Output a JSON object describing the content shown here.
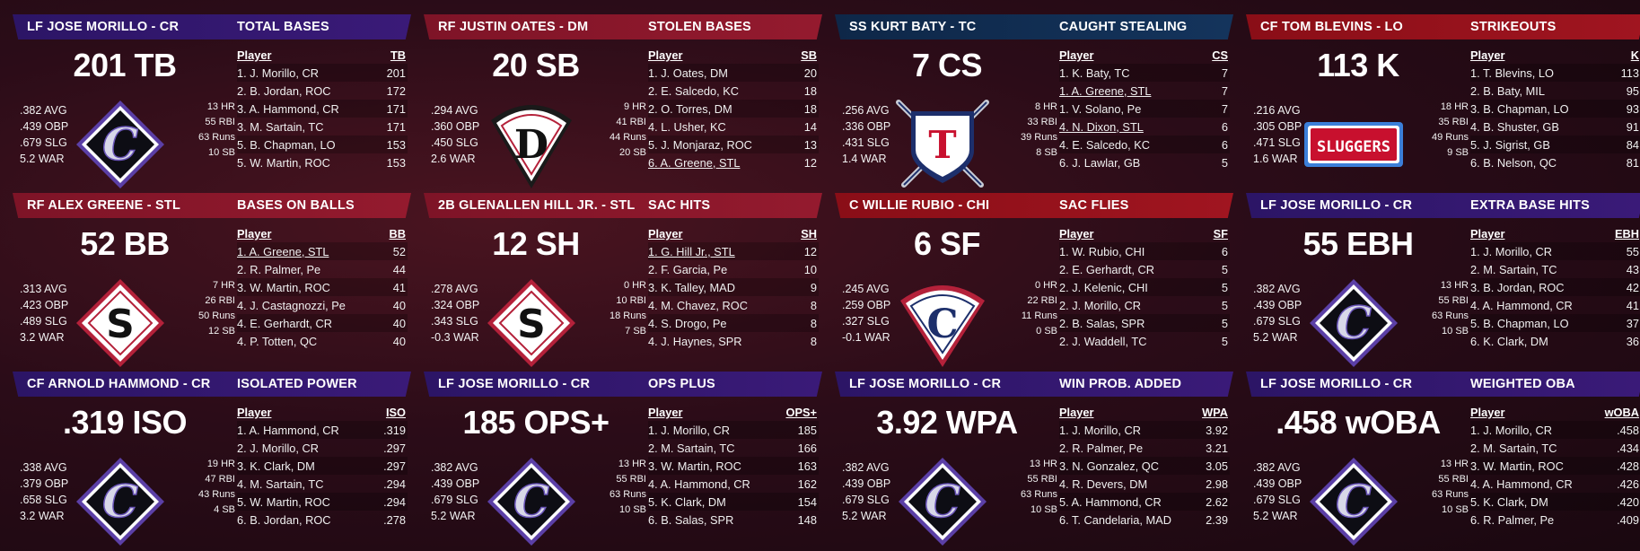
{
  "cards": [
    {
      "header_color": "purple",
      "player": "LF JOSE MORILLO - CR",
      "category": "TOTAL BASES",
      "big": "201 TB",
      "left": [
        ".382 AVG",
        ".439 OBP",
        ".679 SLG",
        "5.2 WAR"
      ],
      "right": [
        "13 HR",
        "55 RBI",
        "63 Runs",
        "10 SB"
      ],
      "logo": "cr",
      "col_player": "Player",
      "col_stat": "TB",
      "rows": [
        {
          "p": "1. J. Morillo, CR",
          "v": "201"
        },
        {
          "p": "2. B. Jordan, ROC",
          "v": "172"
        },
        {
          "p": "3. A. Hammond, CR",
          "v": "171"
        },
        {
          "p": "3. M. Sartain, TC",
          "v": "171"
        },
        {
          "p": "5. B. Chapman, LO",
          "v": "153"
        },
        {
          "p": "5. W. Martin, ROC",
          "v": "153"
        }
      ]
    },
    {
      "header_color": "red",
      "player": "RF JUSTIN OATES - DM",
      "category": "STOLEN BASES",
      "big": "20 SB",
      "left": [
        ".294 AVG",
        ".360 OBP",
        ".450 SLG",
        "2.6 WAR"
      ],
      "right": [
        "9 HR",
        "41 RBI",
        "44 Runs",
        "20 SB"
      ],
      "logo": "dm",
      "col_player": "Player",
      "col_stat": "SB",
      "rows": [
        {
          "p": "1. J. Oates, DM",
          "v": "20"
        },
        {
          "p": "2. E. Salcedo, KC",
          "v": "18"
        },
        {
          "p": "2. O. Torres, DM",
          "v": "18"
        },
        {
          "p": "4. L. Usher, KC",
          "v": "14"
        },
        {
          "p": "5. J. Monjaraz, ROC",
          "v": "13"
        },
        {
          "p": "6. A. Greene, STL",
          "v": "12",
          "hl": true
        }
      ]
    },
    {
      "header_color": "navy",
      "player": "SS KURT BATY - TC",
      "category": "CAUGHT STEALING",
      "big": "7 CS",
      "left": [
        ".256 AVG",
        ".336 OBP",
        ".431 SLG",
        "1.4 WAR"
      ],
      "right": [
        "8 HR",
        "33 RBI",
        "39 Runs",
        "8 SB"
      ],
      "logo": "tc",
      "col_player": "Player",
      "col_stat": "CS",
      "rows": [
        {
          "p": "1. K. Baty, TC",
          "v": "7"
        },
        {
          "p": "1. A. Greene, STL",
          "v": "7",
          "hl": true
        },
        {
          "p": "1. V. Solano, Pe",
          "v": "7"
        },
        {
          "p": "4. N. Dixon, STL",
          "v": "6",
          "hl": true
        },
        {
          "p": "4. E. Salcedo, KC",
          "v": "6"
        },
        {
          "p": "6. J. Lawlar, GB",
          "v": "5"
        }
      ]
    },
    {
      "header_color": "crimson",
      "player": "CF TOM BLEVINS - LO",
      "category": "STRIKEOUTS",
      "big": "113 K",
      "left": [
        ".216 AVG",
        ".305 OBP",
        ".471 SLG",
        "1.6 WAR"
      ],
      "right": [
        "18 HR",
        "35 RBI",
        "49 Runs",
        "9 SB"
      ],
      "logo": "lo",
      "logo_text": "SLUGGERS",
      "col_player": "Player",
      "col_stat": "K",
      "rows": [
        {
          "p": "1. T. Blevins, LO",
          "v": "113"
        },
        {
          "p": "2. B. Baty, MIL",
          "v": "95"
        },
        {
          "p": "3. B. Chapman, LO",
          "v": "93"
        },
        {
          "p": "4. B. Shuster, GB",
          "v": "91"
        },
        {
          "p": "5. J. Sigrist, GB",
          "v": "84"
        },
        {
          "p": "6. B. Nelson, QC",
          "v": "81"
        }
      ]
    },
    {
      "header_color": "red",
      "player": "RF ALEX GREENE - STL",
      "category": "BASES ON BALLS",
      "big": "52 BB",
      "left": [
        ".313 AVG",
        ".423 OBP",
        ".489 SLG",
        "3.2 WAR"
      ],
      "right": [
        "7 HR",
        "26 RBI",
        "50 Runs",
        "12 SB"
      ],
      "logo": "stl",
      "col_player": "Player",
      "col_stat": "BB",
      "rows": [
        {
          "p": "1. A. Greene, STL",
          "v": "52",
          "hl": true
        },
        {
          "p": "2. R. Palmer, Pe",
          "v": "44"
        },
        {
          "p": "3. W. Martin, ROC",
          "v": "41"
        },
        {
          "p": "4. J. Castagnozzi, Pe",
          "v": "40"
        },
        {
          "p": "4. E. Gerhardt, CR",
          "v": "40"
        },
        {
          "p": "4. P. Totten, QC",
          "v": "40"
        }
      ]
    },
    {
      "header_color": "red",
      "player": "2B GLENALLEN HILL JR. - STL",
      "category": "SAC HITS",
      "big": "12 SH",
      "left": [
        ".278 AVG",
        ".324 OBP",
        ".343 SLG",
        "-0.3 WAR"
      ],
      "right": [
        "0 HR",
        "10 RBI",
        "18 Runs",
        "7 SB"
      ],
      "logo": "stl",
      "col_player": "Player",
      "col_stat": "SH",
      "rows": [
        {
          "p": "1. G. Hill Jr., STL",
          "v": "12",
          "hl": true
        },
        {
          "p": "2. F. Garcia, Pe",
          "v": "10"
        },
        {
          "p": "3. K. Talley, MAD",
          "v": "9"
        },
        {
          "p": "4. M. Chavez, ROC",
          "v": "8"
        },
        {
          "p": "4. S. Drogo, Pe",
          "v": "8"
        },
        {
          "p": "4. J. Haynes, SPR",
          "v": "8"
        }
      ]
    },
    {
      "header_color": "crimson",
      "player": "C WILLIE RUBIO - CHI",
      "category": "SAC FLIES",
      "big": "6 SF",
      "left": [
        ".245 AVG",
        ".259 OBP",
        ".327 SLG",
        "-0.1 WAR"
      ],
      "right": [
        "0 HR",
        "22 RBI",
        "11 Runs",
        "0 SB"
      ],
      "logo": "chi",
      "col_player": "Player",
      "col_stat": "SF",
      "rows": [
        {
          "p": "1. W. Rubio, CHI",
          "v": "6"
        },
        {
          "p": "2. E. Gerhardt, CR",
          "v": "5"
        },
        {
          "p": "2. J. Kelenic, CHI",
          "v": "5"
        },
        {
          "p": "2. J. Morillo, CR",
          "v": "5"
        },
        {
          "p": "2. B. Salas, SPR",
          "v": "5"
        },
        {
          "p": "2. J. Waddell, TC",
          "v": "5"
        }
      ]
    },
    {
      "header_color": "purple",
      "player": "LF JOSE MORILLO - CR",
      "category": "EXTRA BASE HITS",
      "big": "55 EBH",
      "left": [
        ".382 AVG",
        ".439 OBP",
        ".679 SLG",
        "5.2 WAR"
      ],
      "right": [
        "13 HR",
        "55 RBI",
        "63 Runs",
        "10 SB"
      ],
      "logo": "cr",
      "col_player": "Player",
      "col_stat": "EBH",
      "rows": [
        {
          "p": "1. J. Morillo, CR",
          "v": "55"
        },
        {
          "p": "2. M. Sartain, TC",
          "v": "43"
        },
        {
          "p": "3. B. Jordan, ROC",
          "v": "42"
        },
        {
          "p": "4. A. Hammond, CR",
          "v": "41"
        },
        {
          "p": "5. B. Chapman, LO",
          "v": "37"
        },
        {
          "p": "6. K. Clark, DM",
          "v": "36"
        }
      ]
    },
    {
      "header_color": "purple",
      "player": "CF ARNOLD HAMMOND - CR",
      "category": "ISOLATED POWER",
      "big": ".319 ISO",
      "left": [
        ".338 AVG",
        ".379 OBP",
        ".658 SLG",
        "3.2 WAR"
      ],
      "right": [
        "19 HR",
        "47 RBI",
        "43 Runs",
        "4 SB"
      ],
      "logo": "cr",
      "col_player": "Player",
      "col_stat": "ISO",
      "rows": [
        {
          "p": "1. A. Hammond, CR",
          "v": ".319"
        },
        {
          "p": "2. J. Morillo, CR",
          "v": ".297"
        },
        {
          "p": "3. K. Clark, DM",
          "v": ".297"
        },
        {
          "p": "4. M. Sartain, TC",
          "v": ".294"
        },
        {
          "p": "5. W. Martin, ROC",
          "v": ".294"
        },
        {
          "p": "6. B. Jordan, ROC",
          "v": ".278"
        }
      ]
    },
    {
      "header_color": "purple",
      "player": "LF JOSE MORILLO - CR",
      "category": "OPS PLUS",
      "big": "185 OPS+",
      "left": [
        ".382 AVG",
        ".439 OBP",
        ".679 SLG",
        "5.2 WAR"
      ],
      "right": [
        "13 HR",
        "55 RBI",
        "63 Runs",
        "10 SB"
      ],
      "logo": "cr",
      "col_player": "Player",
      "col_stat": "OPS+",
      "rows": [
        {
          "p": "1. J. Morillo, CR",
          "v": "185"
        },
        {
          "p": "2. M. Sartain, TC",
          "v": "166"
        },
        {
          "p": "3. W. Martin, ROC",
          "v": "163"
        },
        {
          "p": "4. A. Hammond, CR",
          "v": "162"
        },
        {
          "p": "5. K. Clark, DM",
          "v": "154"
        },
        {
          "p": "6. B. Salas, SPR",
          "v": "148"
        }
      ]
    },
    {
      "header_color": "purple",
      "player": "LF JOSE MORILLO - CR",
      "category": "WIN PROB. ADDED",
      "big": "3.92 WPA",
      "left": [
        ".382 AVG",
        ".439 OBP",
        ".679 SLG",
        "5.2 WAR"
      ],
      "right": [
        "13 HR",
        "55 RBI",
        "63 Runs",
        "10 SB"
      ],
      "logo": "cr",
      "col_player": "Player",
      "col_stat": "WPA",
      "rows": [
        {
          "p": "1. J. Morillo, CR",
          "v": "3.92"
        },
        {
          "p": "2. R. Palmer, Pe",
          "v": "3.21"
        },
        {
          "p": "3. N. Gonzalez, QC",
          "v": "3.05"
        },
        {
          "p": "4. R. Devers, DM",
          "v": "2.98"
        },
        {
          "p": "5. A. Hammond, CR",
          "v": "2.62"
        },
        {
          "p": "6. T. Candelaria, MAD",
          "v": "2.39"
        }
      ]
    },
    {
      "header_color": "purple",
      "player": "LF JOSE MORILLO - CR",
      "category": "WEIGHTED OBA",
      "big": ".458 wOBA",
      "left": [
        ".382 AVG",
        ".439 OBP",
        ".679 SLG",
        "5.2 WAR"
      ],
      "right": [
        "13 HR",
        "55 RBI",
        "63 Runs",
        "10 SB"
      ],
      "logo": "cr",
      "col_player": "Player",
      "col_stat": "wOBA",
      "rows": [
        {
          "p": "1. J. Morillo, CR",
          "v": ".458"
        },
        {
          "p": "2. M. Sartain, TC",
          "v": ".434"
        },
        {
          "p": "3. W. Martin, ROC",
          "v": ".428"
        },
        {
          "p": "4. A. Hammond, CR",
          "v": ".426"
        },
        {
          "p": "5. K. Clark, DM",
          "v": ".420"
        },
        {
          "p": "6. R. Palmer, Pe",
          "v": ".409"
        }
      ]
    }
  ]
}
